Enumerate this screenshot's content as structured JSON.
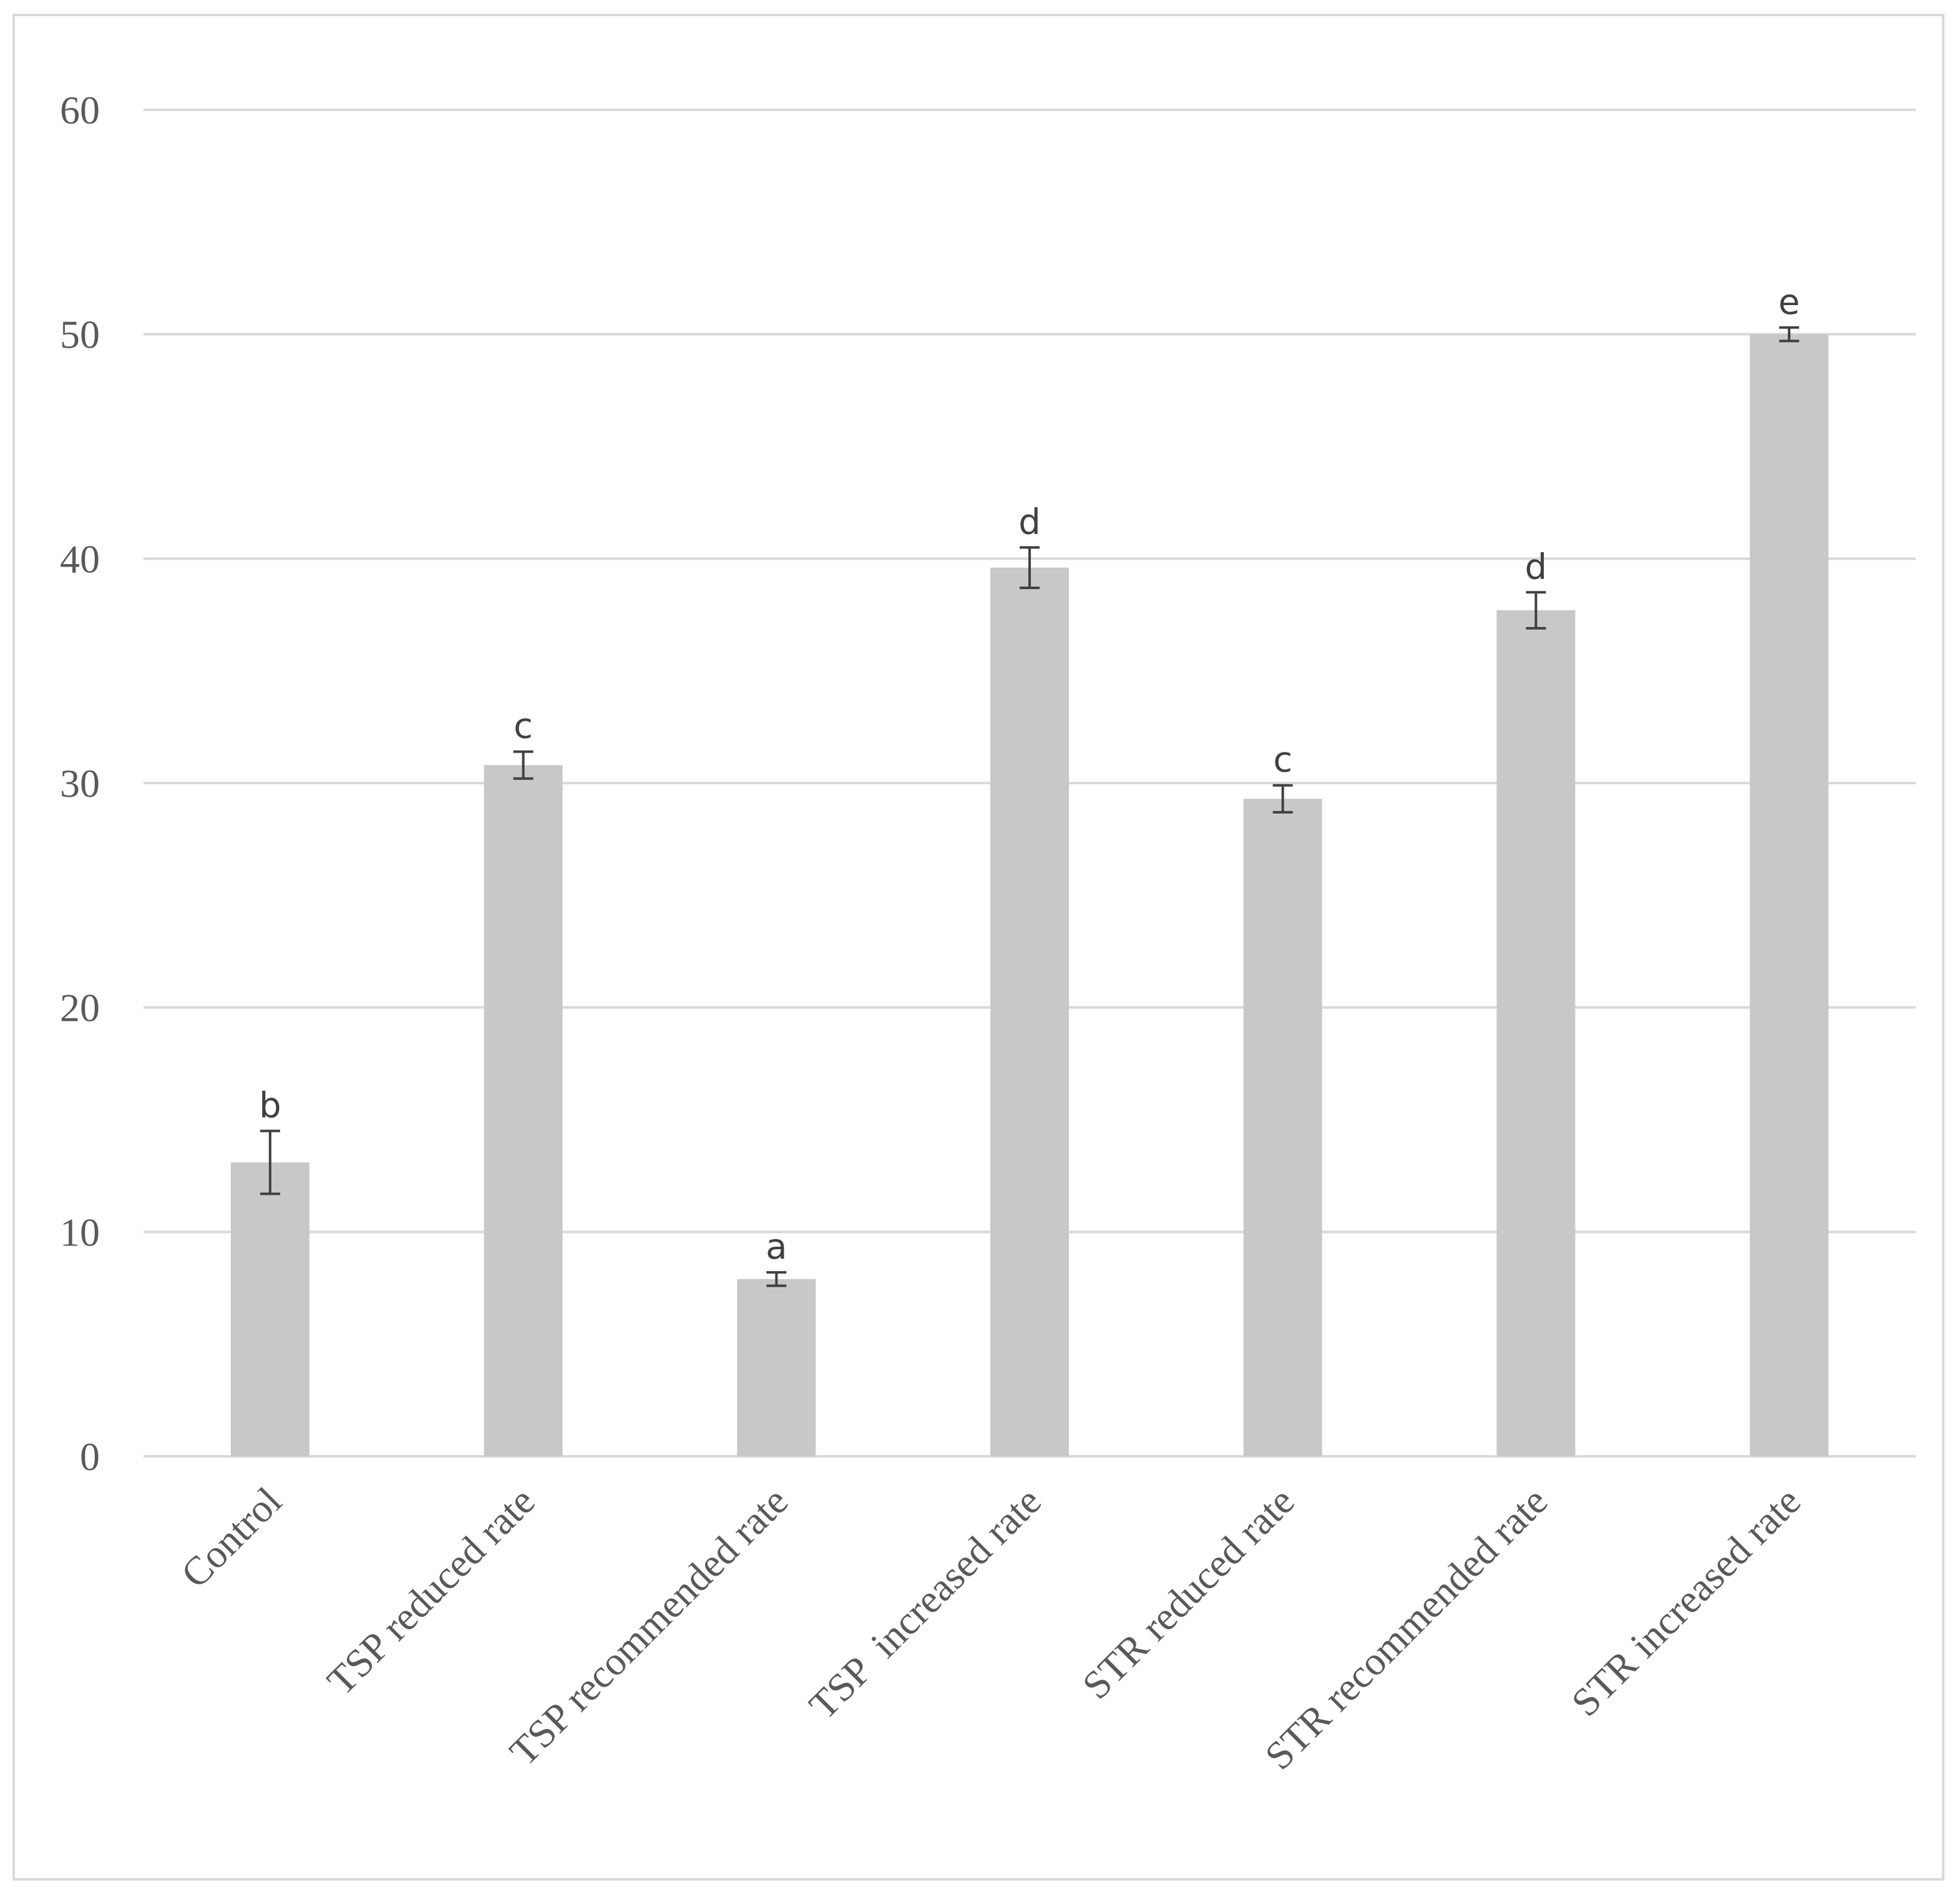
{
  "chart_data": {
    "type": "bar",
    "title": "",
    "xlabel": "",
    "ylabel": "",
    "ylim": [
      0,
      60
    ],
    "yticks": [
      0,
      10,
      20,
      30,
      40,
      50,
      60
    ],
    "grid": true,
    "legend": "none",
    "colors": {
      "bar": "#c8c8c8",
      "grid": "#d9d9d9",
      "error_bar": "#404040",
      "tick_text": "#595959",
      "frame": "#d9d9d9"
    },
    "categories": [
      "Control",
      "TSP reduced rate",
      "TSP recommended rate",
      "TSP  increased rate",
      "STR reduced rate",
      "STR recommended rate",
      "STR increased rate"
    ],
    "values": [
      13.1,
      30.8,
      7.9,
      39.6,
      29.3,
      37.7,
      50.0
    ],
    "errors": [
      1.4,
      0.6,
      0.3,
      0.9,
      0.6,
      0.8,
      0.3
    ],
    "significance_labels": [
      "b",
      "c",
      "a",
      "d",
      "c",
      "d",
      "e"
    ]
  }
}
